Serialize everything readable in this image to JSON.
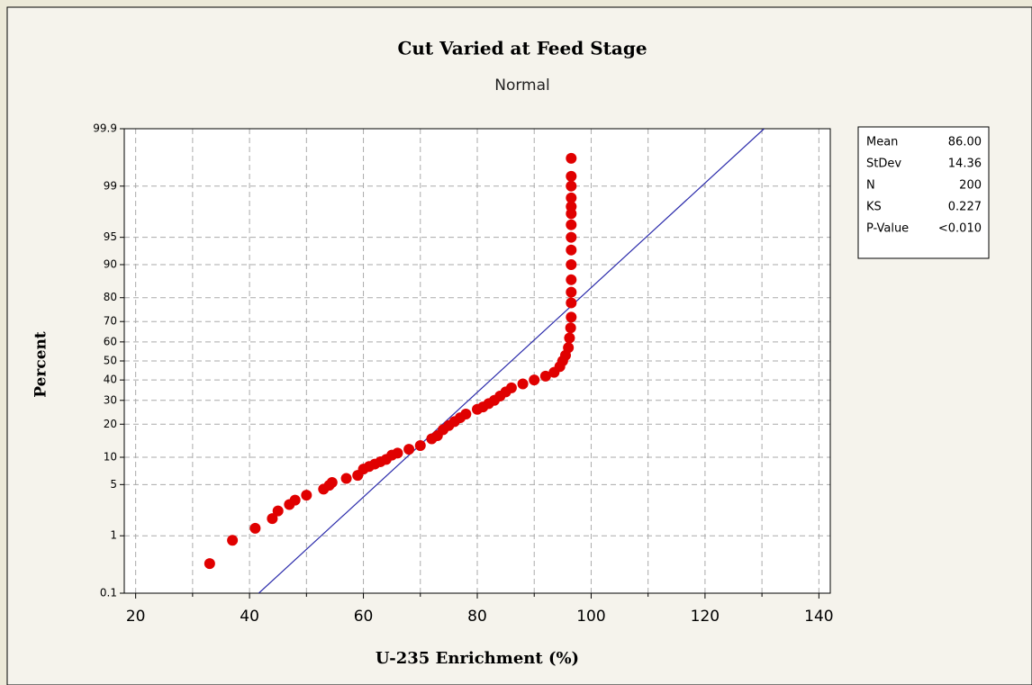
{
  "chart_data": {
    "type": "probability",
    "title": "Cut Varied at Feed Stage",
    "subtitle": "Normal",
    "xlabel": "U-235 Enrichment (%)",
    "ylabel": "Percent",
    "yscale": "normal-probability",
    "xlim": [
      18,
      142
    ],
    "xticks": [
      20,
      40,
      60,
      80,
      100,
      120,
      140
    ],
    "xminor": [
      30,
      50,
      70,
      90,
      110,
      130
    ],
    "ylim": [
      0.1,
      99.9
    ],
    "yticks": [
      0.1,
      1,
      5,
      10,
      20,
      30,
      40,
      50,
      60,
      70,
      80,
      90,
      95,
      99,
      99.9
    ],
    "grid": true,
    "point_color": "#e00000",
    "line_color": "#2b2bab",
    "x": [
      33,
      37,
      41,
      44,
      45,
      47,
      48,
      50,
      53,
      54,
      54.5,
      57,
      59,
      60,
      61,
      62,
      63,
      64,
      65,
      66,
      68,
      70,
      72,
      73,
      74,
      75,
      76,
      77,
      78,
      80,
      81,
      82,
      83,
      84,
      85,
      86,
      88,
      90,
      92,
      93.5,
      94.5,
      95,
      95.5,
      96,
      96.2,
      96.4,
      96.5,
      96.5,
      96.5,
      96.5,
      96.5,
      96.5,
      96.5,
      96.5,
      96.5,
      96.5,
      96.5,
      96.5,
      96.5,
      96.5
    ],
    "values": [
      0.35,
      0.85,
      1.3,
      1.8,
      2.3,
      2.8,
      3.2,
      3.7,
      4.4,
      4.9,
      5.3,
      5.9,
      6.4,
      7.5,
      8,
      8.5,
      9,
      9.5,
      10.5,
      11,
      12,
      13,
      15,
      16,
      18,
      19.5,
      21,
      22.5,
      24,
      26,
      27,
      28.5,
      30,
      32,
      34,
      36,
      38,
      40,
      42,
      44,
      47,
      50,
      53,
      57,
      62,
      67,
      72,
      78,
      82,
      86,
      90,
      93,
      95,
      96.5,
      97.5,
      98,
      98.5,
      99,
      99.3,
      99.65
    ],
    "stats": [
      {
        "name": "Mean",
        "value": {
          "value": 86,
          "label": "86.00"
        }
      },
      {
        "name": "StDev",
        "value": 14.36
      },
      {
        "name": "N",
        "value": 200
      },
      {
        "name": "KS",
        "value": 0.227
      },
      {
        "name": "P-Value",
        "value": "<0.010"
      }
    ]
  }
}
